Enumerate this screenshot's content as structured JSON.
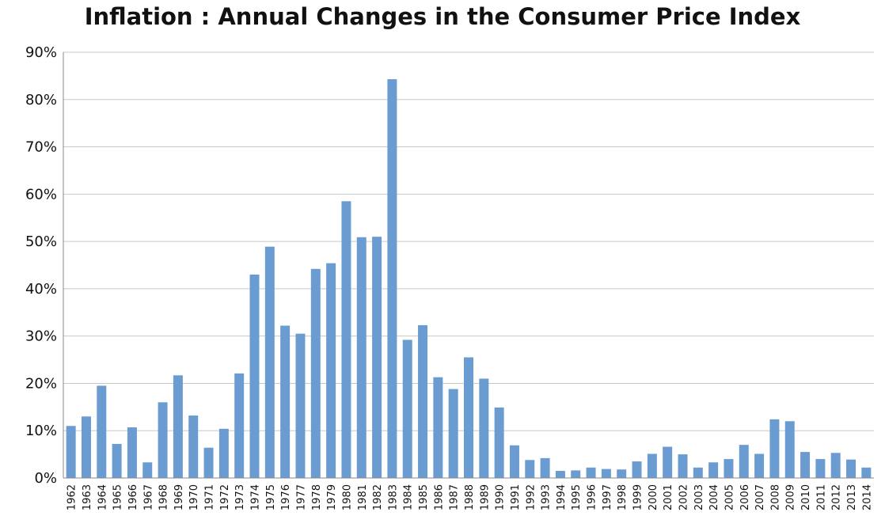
{
  "chart_data": {
    "type": "bar",
    "title": "Inflation : Annual Changes in the Consumer Price Index",
    "xlabel": "",
    "ylabel": "",
    "ylim": [
      0,
      90
    ],
    "yticks": [
      "0%",
      "10%",
      "20%",
      "30%",
      "40%",
      "50%",
      "60%",
      "70%",
      "80%",
      "90%"
    ],
    "grid": true,
    "legend": "none",
    "bar_color": "#6a9bd1",
    "categories": [
      "1962",
      "1963",
      "1964",
      "1965",
      "1966",
      "1967",
      "1968",
      "1969",
      "1970",
      "1971",
      "1972",
      "1973",
      "1974",
      "1975",
      "1976",
      "1977",
      "1978",
      "1979",
      "1980",
      "1981",
      "1982",
      "1983",
      "1984",
      "1985",
      "1986",
      "1987",
      "1988",
      "1989",
      "1990",
      "1991",
      "1992",
      "1993",
      "1994",
      "1995",
      "1996",
      "1997",
      "1998",
      "1999",
      "2000",
      "2001",
      "2002",
      "2003",
      "2004",
      "2005",
      "2006",
      "2007",
      "2008",
      "2009",
      "2010",
      "2011",
      "2012",
      "2013",
      "2014"
    ],
    "values": [
      11.0,
      13.0,
      19.5,
      7.2,
      10.7,
      3.3,
      16.0,
      21.7,
      13.2,
      6.4,
      10.4,
      22.1,
      43.0,
      48.9,
      32.2,
      30.5,
      44.2,
      45.4,
      58.5,
      50.9,
      51.0,
      84.3,
      29.2,
      32.3,
      21.3,
      18.8,
      25.5,
      21.0,
      14.9,
      6.9,
      3.8,
      4.2,
      1.5,
      1.6,
      2.2,
      1.9,
      1.8,
      3.5,
      5.1,
      6.6,
      5.0,
      2.2,
      3.3,
      4.0,
      7.0,
      5.1,
      12.4,
      12.0,
      5.5,
      4.0,
      5.3,
      3.9,
      2.2
    ]
  }
}
